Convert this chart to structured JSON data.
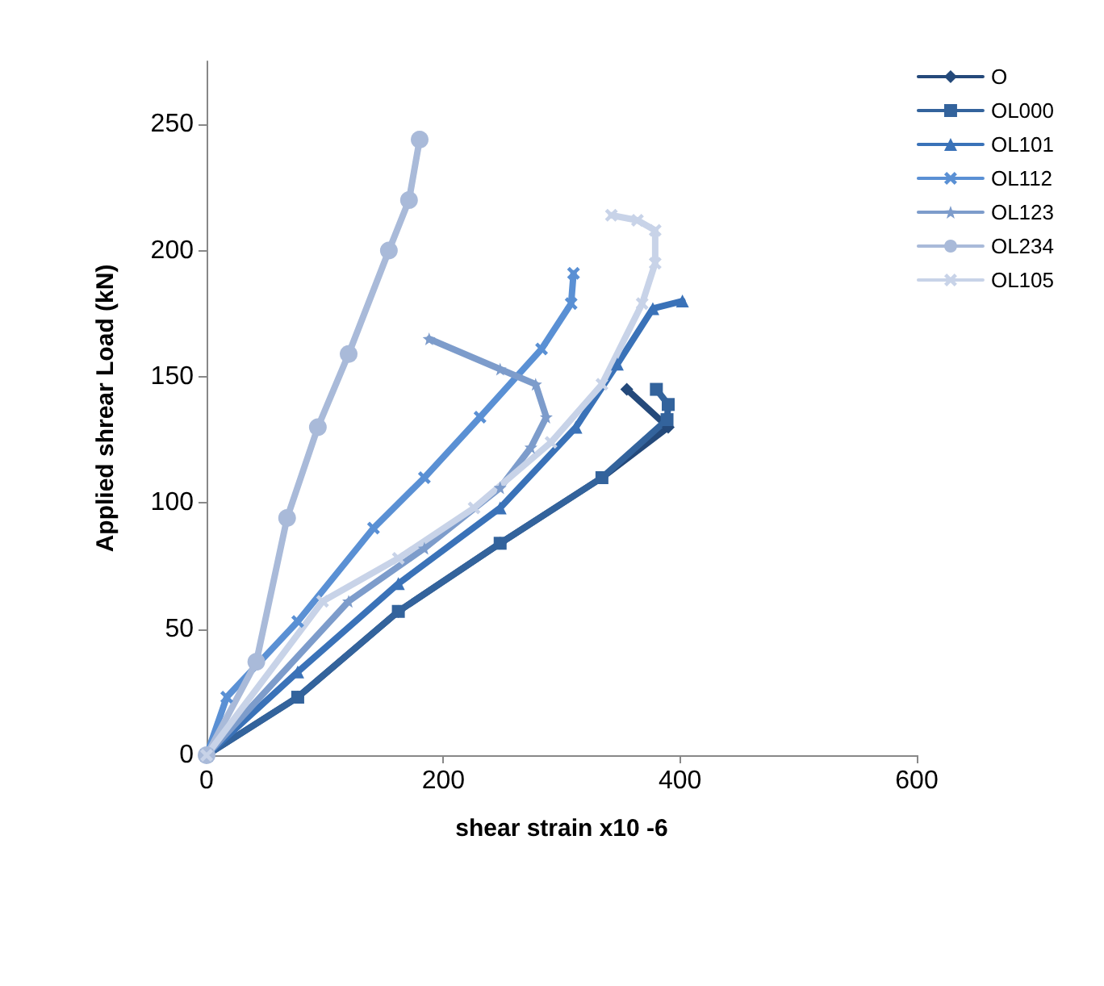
{
  "chart_data": {
    "type": "line",
    "xlabel": "shear strain x10 -6",
    "ylabel": "Applied shrear Load (kN)",
    "xlim": [
      0,
      600
    ],
    "xticks": [
      0,
      200,
      400,
      600
    ],
    "ylim": [
      0,
      275
    ],
    "yticks": [
      0,
      50,
      100,
      150,
      200,
      250
    ],
    "grid": false,
    "legend": "top right",
    "line_style": "solid",
    "series": [
      {
        "name": "O",
        "color": "#24497a",
        "marker": "diamond",
        "x": [
          0,
          77,
          162,
          248,
          334,
          390,
          355
        ],
        "values": [
          0,
          23,
          57,
          84,
          110,
          130,
          145
        ]
      },
      {
        "name": "OL000",
        "color": "#33639c",
        "marker": "square",
        "x": [
          0,
          77,
          162,
          248,
          334,
          389,
          390,
          380
        ],
        "values": [
          0,
          23,
          57,
          84,
          110,
          133,
          139,
          145
        ]
      },
      {
        "name": "OL101",
        "color": "#3a72b8",
        "marker": "triangle",
        "x": [
          0,
          77,
          162,
          248,
          312,
          347,
          377,
          402
        ],
        "values": [
          0,
          33,
          68,
          98,
          130,
          155,
          177,
          180
        ]
      },
      {
        "name": "OL112",
        "color": "#5a90d4",
        "marker": "cross",
        "x": [
          0,
          17,
          77,
          141,
          184,
          231,
          283,
          308,
          310
        ],
        "values": [
          0,
          23,
          53,
          90,
          110,
          134,
          161,
          179,
          191
        ]
      },
      {
        "name": "OL123",
        "color": "#7d9ccb",
        "marker": "star",
        "x": [
          0,
          120,
          184,
          248,
          274,
          287,
          278,
          248,
          188
        ],
        "values": [
          0,
          61,
          82,
          106,
          122,
          134,
          147,
          153,
          165
        ]
      },
      {
        "name": "OL234",
        "color": "#a9bad9",
        "marker": "circle",
        "x": [
          0,
          42,
          68,
          94,
          120,
          154,
          171,
          180
        ],
        "values": [
          0,
          37,
          94,
          130,
          159,
          200,
          220,
          244
        ]
      },
      {
        "name": "OL105",
        "color": "#c8d3e8",
        "marker": "cross",
        "x": [
          0,
          98,
          162,
          226,
          291,
          334,
          368,
          379,
          379,
          364,
          342
        ],
        "values": [
          0,
          61,
          78,
          98,
          124,
          147,
          179,
          195,
          208,
          212,
          214
        ]
      }
    ]
  }
}
